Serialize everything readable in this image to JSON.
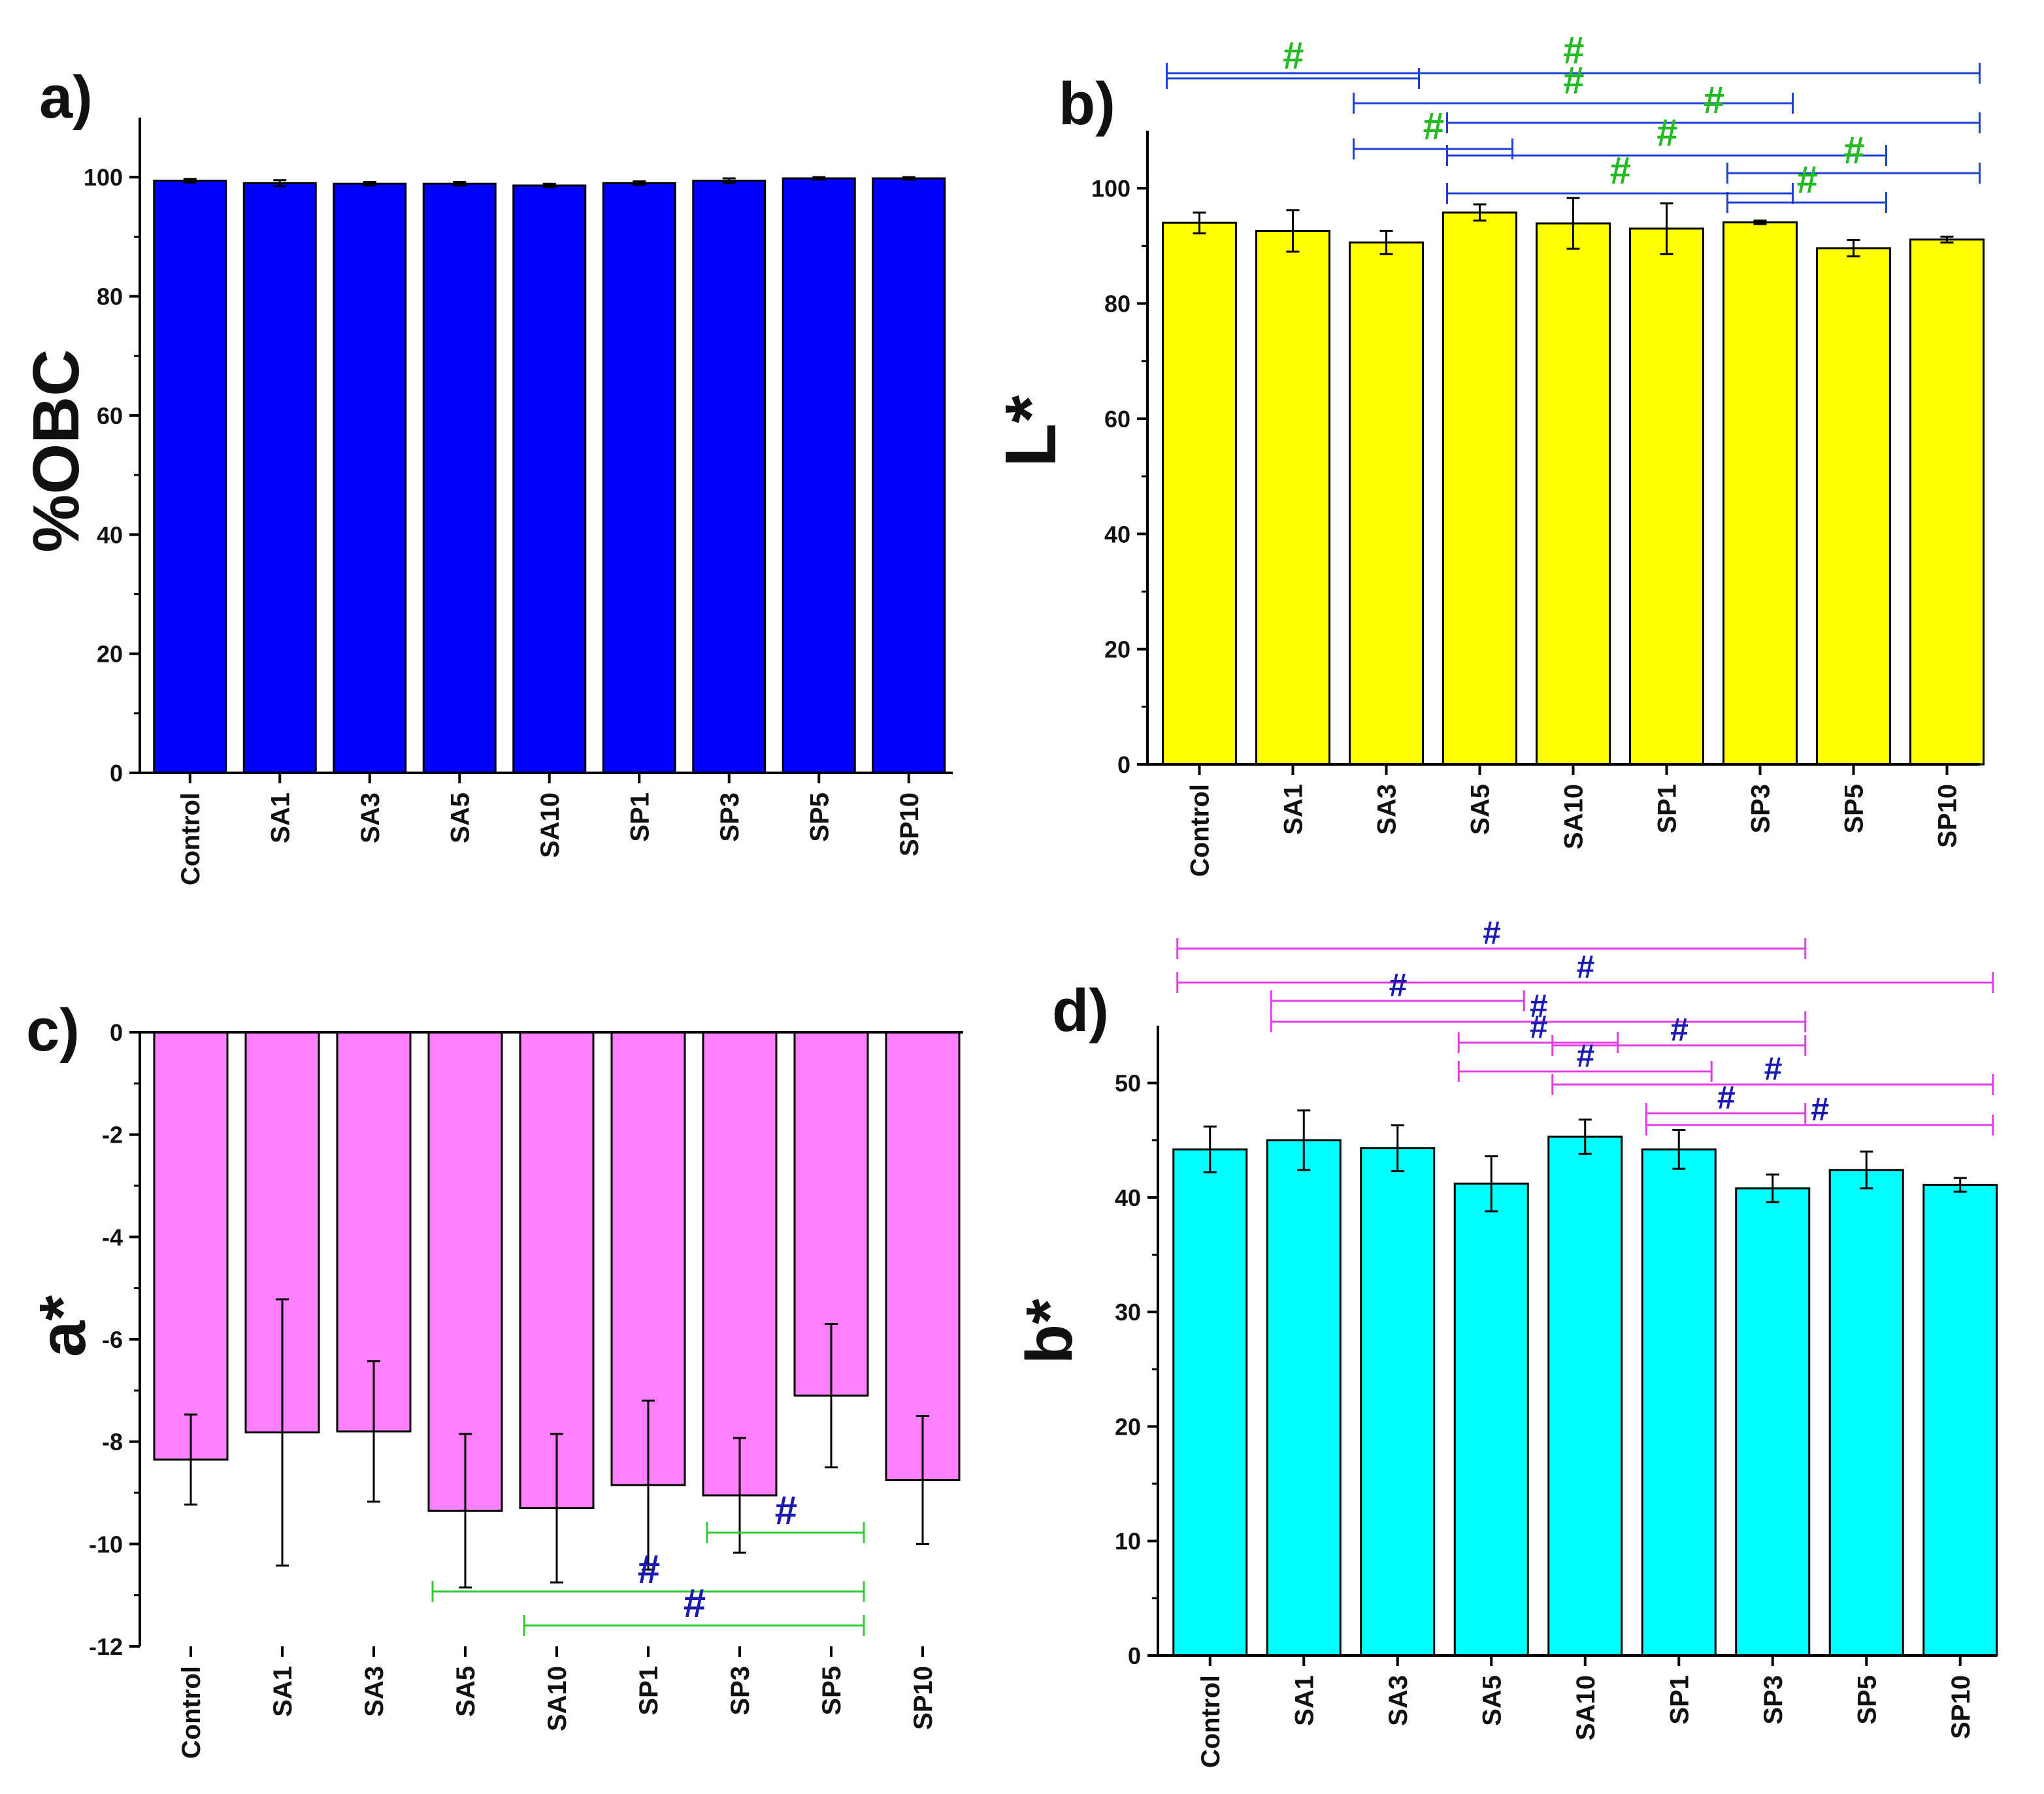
{
  "chart_data": [
    {
      "panel": "a)",
      "type": "bar",
      "categories": [
        "Control",
        "SA1",
        "SA3",
        "SA5",
        "SA10",
        "SP1",
        "SP3",
        "SP5",
        "SP10"
      ],
      "values": [
        99.4,
        99.0,
        98.9,
        98.9,
        98.6,
        99.0,
        99.4,
        99.8,
        99.8
      ],
      "errors": [
        0.3,
        0.5,
        0.3,
        0.3,
        0.3,
        0.3,
        0.4,
        0.2,
        0.2
      ],
      "ylabel": "%OBC",
      "ylim": [
        0,
        110
      ],
      "yticks": [
        0,
        20,
        40,
        60,
        80,
        100
      ],
      "bar_color": "#0000ff",
      "significance": []
    },
    {
      "panel": "b)",
      "type": "bar",
      "categories": [
        "Control",
        "SA1",
        "SA3",
        "SA5",
        "SA10",
        "SP1",
        "SP3",
        "SP5",
        "SP10"
      ],
      "values": [
        94.0,
        92.6,
        90.6,
        95.8,
        93.9,
        93.0,
        94.1,
        89.6,
        91.1
      ],
      "errors": [
        1.8,
        3.6,
        2.0,
        1.4,
        4.4,
        4.4,
        0.3,
        1.4,
        0.5
      ],
      "ylabel": "L*",
      "ylim": [
        0,
        110
      ],
      "yticks": [
        0,
        20,
        40,
        60,
        80,
        100
      ],
      "bar_color": "#ffff00",
      "line_color": "#1f3fd9",
      "mark_color": "#22bb22",
      "significance": [
        {
          "from": "Control",
          "to": "SP10",
          "label": "#"
        },
        {
          "from": "SA3",
          "to": "SP3",
          "label": "#"
        },
        {
          "from": "SA5",
          "to": "SP10",
          "label": "#"
        },
        {
          "from": "SA5",
          "to": "SP5",
          "label": "#"
        },
        {
          "from": "SP3",
          "to": "SP10",
          "label": "#"
        },
        {
          "from": "Control",
          "to": "SA3",
          "label": "#"
        },
        {
          "from": "SA3",
          "to": "SA5",
          "label": "#"
        },
        {
          "from": "SA5",
          "to": "SP3",
          "label": "#"
        },
        {
          "from": "SP3",
          "to": "SP5",
          "label": "#"
        }
      ]
    },
    {
      "panel": "c)",
      "type": "bar",
      "categories": [
        "Control",
        "SA1",
        "SA3",
        "SA5",
        "SA10",
        "SP1",
        "SP3",
        "SP5",
        "SP10"
      ],
      "values": [
        -8.35,
        -7.82,
        -7.8,
        -9.35,
        -9.3,
        -8.85,
        -9.05,
        -7.1,
        -8.75
      ],
      "errors": [
        0.88,
        2.6,
        1.37,
        1.5,
        1.45,
        1.65,
        1.12,
        1.4,
        1.25
      ],
      "ylabel": "a*",
      "ylim": [
        -12,
        0
      ],
      "yticks": [
        0,
        -2,
        -4,
        -6,
        -8,
        -10,
        -12
      ],
      "bar_color": "#ff80ff",
      "line_color": "#33cc33",
      "mark_color": "#1a1ab3",
      "significance": [
        {
          "from": "SP3",
          "to": "SP5",
          "label": "#"
        },
        {
          "from": "SA5",
          "to": "SP5",
          "label": "#"
        },
        {
          "from": "SA10",
          "to": "SP5",
          "label": "#"
        }
      ]
    },
    {
      "panel": "d)",
      "type": "bar",
      "categories": [
        "Control",
        "SA1",
        "SA3",
        "SA5",
        "SA10",
        "SP1",
        "SP3",
        "SP5",
        "SP10"
      ],
      "values": [
        44.2,
        45.0,
        44.3,
        41.2,
        45.3,
        44.2,
        40.8,
        42.4,
        41.1
      ],
      "errors": [
        2.0,
        2.6,
        2.0,
        2.4,
        1.5,
        1.7,
        1.2,
        1.6,
        0.6
      ],
      "ylabel": "b*",
      "ylim": [
        0,
        55
      ],
      "yticks": [
        0,
        10,
        20,
        30,
        40,
        50
      ],
      "bar_color": "#00ffff",
      "line_color": "#e040e0",
      "mark_color": "#1a1ab3",
      "significance": [
        {
          "from": "Control",
          "to": "SP3",
          "label": "#"
        },
        {
          "from": "Control",
          "to": "SP10",
          "label": "#"
        },
        {
          "from": "SA1",
          "to": "SA5",
          "label": "#"
        },
        {
          "from": "SA1",
          "to": "SP3",
          "label": "#"
        },
        {
          "from": "SA5",
          "to": "SA10",
          "label": "#"
        },
        {
          "from": "SA10",
          "to": "SP3",
          "label": "#"
        },
        {
          "from": "SA5",
          "to": "SP1",
          "label": "#"
        },
        {
          "from": "SA10",
          "to": "SP10",
          "label": "#"
        },
        {
          "from": "SP1",
          "to": "SP3",
          "label": "#"
        },
        {
          "from": "SP1",
          "to": "SP10",
          "label": "#"
        }
      ]
    }
  ]
}
